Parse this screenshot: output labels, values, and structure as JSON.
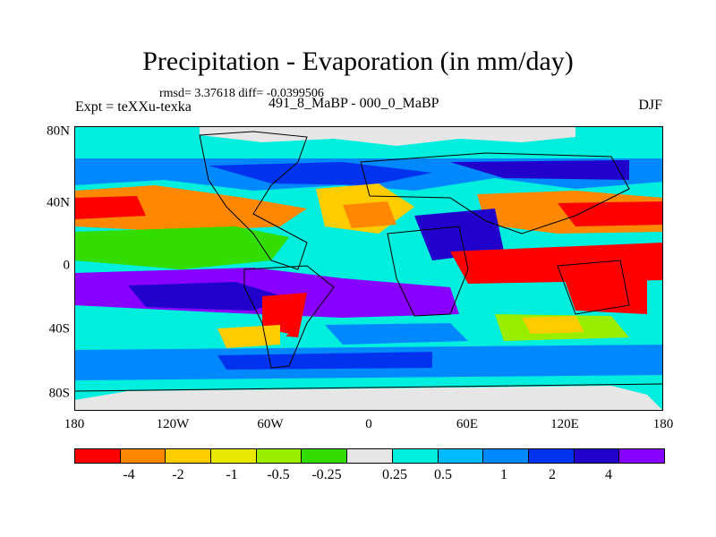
{
  "title": "Precipitation - Evaporation (in mm/day)",
  "stats": "rmsd= 3.37618 diff= -0.0399506",
  "expt": "Expt = teXXu-texka",
  "period": "491_8_MaBP - 000_0_MaBP",
  "season": "DJF",
  "x_ticks": [
    "180",
    "120W",
    "60W",
    "0",
    "60E",
    "120E",
    "180"
  ],
  "y_ticks": [
    "80N",
    "40N",
    "0",
    "40S",
    "80S"
  ],
  "colorbar": {
    "colors": [
      "#ff0000",
      "#ff8800",
      "#ffcc00",
      "#e8e800",
      "#99ee00",
      "#33dd00",
      "#e6e6e6",
      "#00eedd",
      "#00bbff",
      "#0088ff",
      "#0033ee",
      "#2200cc",
      "#8800ff"
    ],
    "labels": [
      "-4",
      "-2",
      "-1",
      "-0.5",
      "-0.25",
      "0.25",
      "0.5",
      "1",
      "2",
      "4"
    ]
  }
}
